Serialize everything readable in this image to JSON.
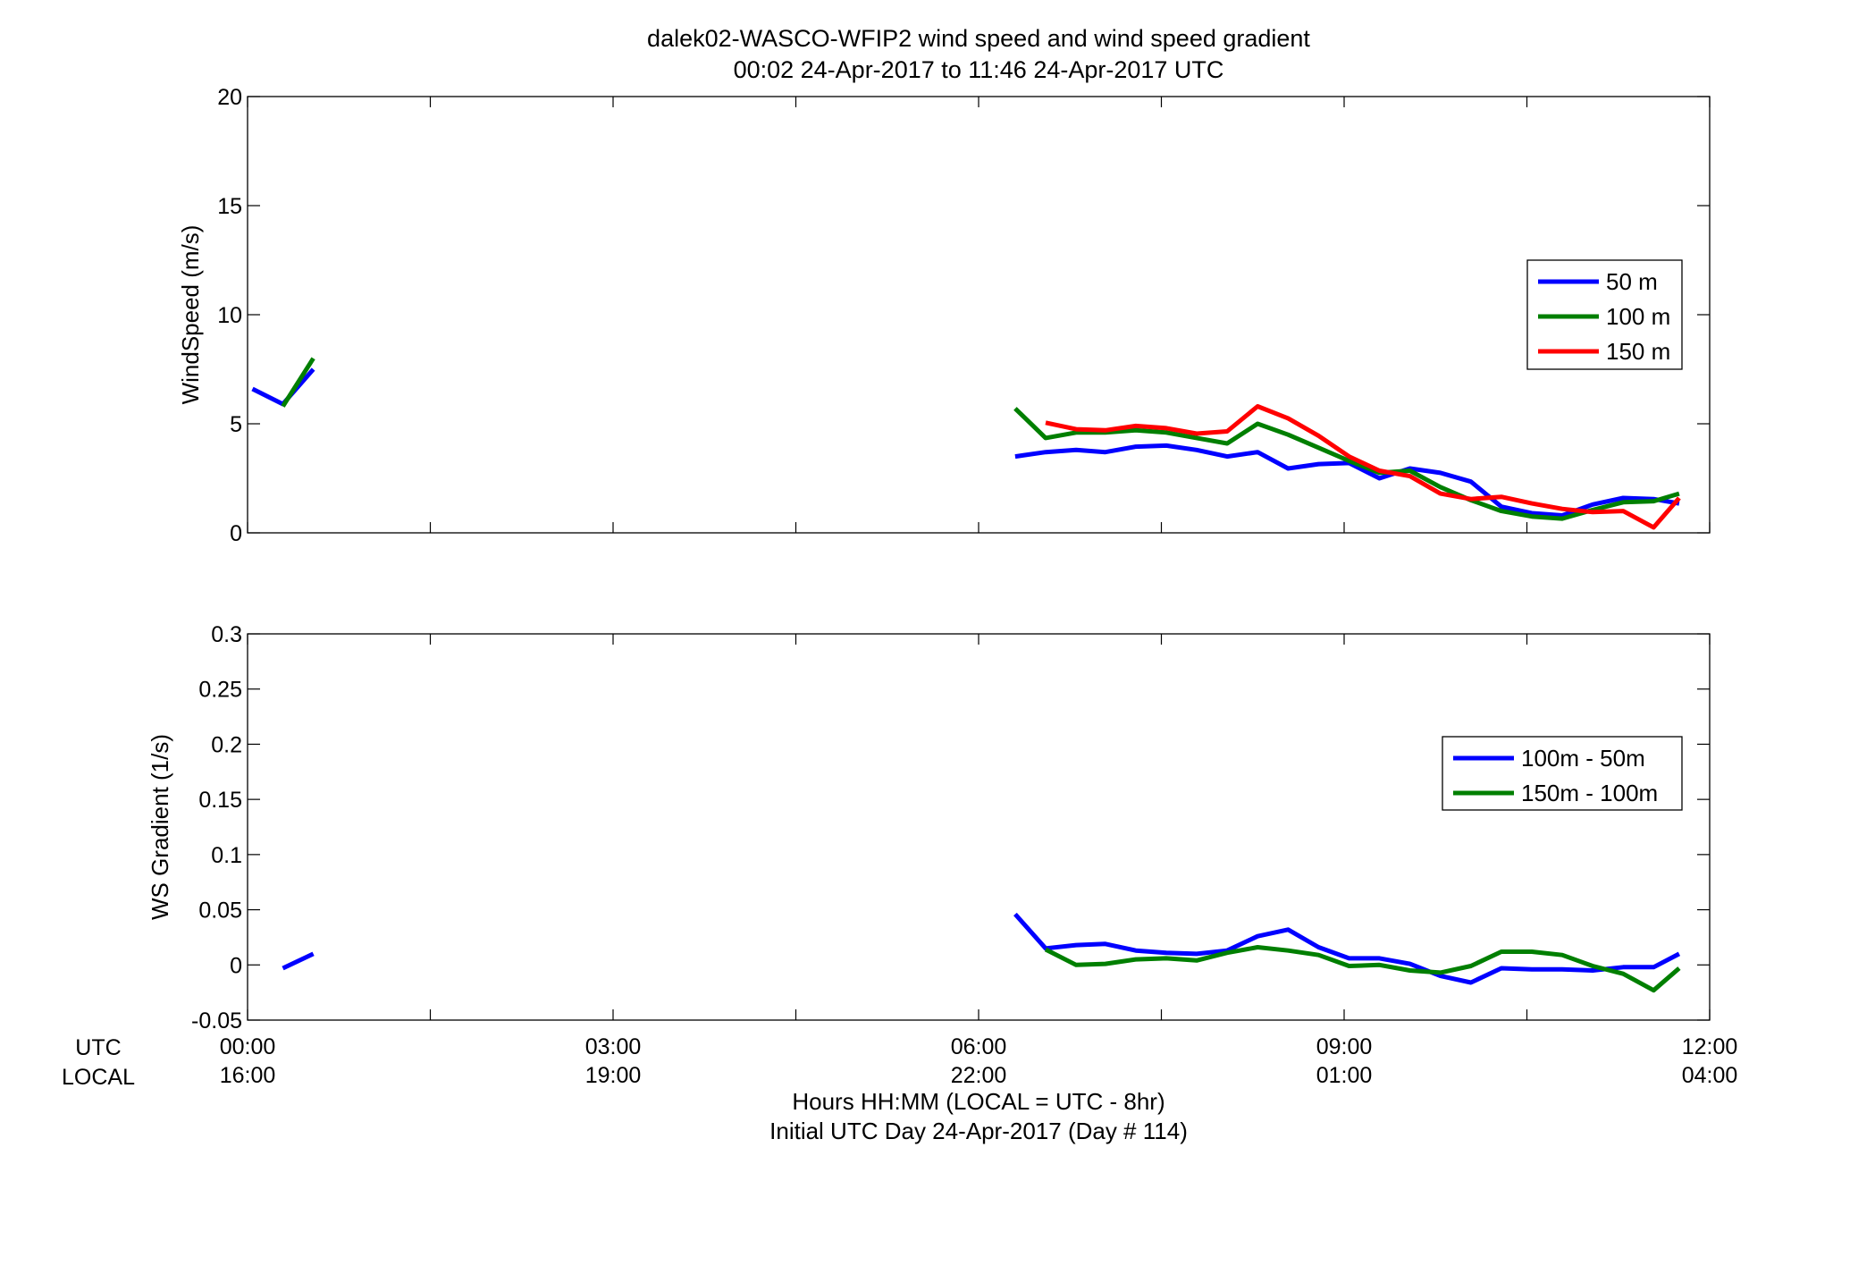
{
  "title_line1": "dalek02-WASCO-WFIP2  wind speed and wind speed gradient",
  "title_line2": "00:02 24-Apr-2017 to 11:46 24-Apr-2017  UTC",
  "row_labels": {
    "utc": "UTC",
    "local": "LOCAL"
  },
  "xlabel_line1": "Hours HH:MM  (LOCAL = UTC - 8hr)",
  "xlabel_line2": "Initial UTC Day 24-Apr-2017 (Day # 114)",
  "x_ticks": [
    {
      "hours": 0,
      "utc": "00:00",
      "local": "16:00"
    },
    {
      "hours": 3,
      "utc": "03:00",
      "local": "19:00"
    },
    {
      "hours": 6,
      "utc": "06:00",
      "local": "22:00"
    },
    {
      "hours": 9,
      "utc": "09:00",
      "local": "01:00"
    },
    {
      "hours": 12,
      "utc": "12:00",
      "local": "04:00"
    }
  ],
  "colors": {
    "blue": "#0000ff",
    "green": "#007f00",
    "red": "#ff0000"
  },
  "chart_data": [
    {
      "type": "line",
      "ylabel": "WindSpeed (m/s)",
      "xlim": [
        0,
        12
      ],
      "ylim": [
        0,
        20
      ],
      "yticks": [
        0,
        5,
        10,
        15,
        20
      ],
      "x_unit": "hours UTC",
      "grid": false,
      "legend_placement": "right",
      "series": [
        {
          "name": "50 m",
          "color": "#0000ff",
          "segments": [
            [
              [
                0.04,
                6.6
              ],
              [
                0.29,
                5.9
              ],
              [
                0.54,
                7.5
              ]
            ],
            [
              [
                6.3,
                3.5
              ],
              [
                6.55,
                3.7
              ],
              [
                6.8,
                3.8
              ],
              [
                7.04,
                3.7
              ],
              [
                7.29,
                3.95
              ],
              [
                7.54,
                4.0
              ],
              [
                7.79,
                3.8
              ],
              [
                8.04,
                3.5
              ],
              [
                8.29,
                3.7
              ],
              [
                8.54,
                2.95
              ],
              [
                8.79,
                3.15
              ],
              [
                9.04,
                3.2
              ],
              [
                9.29,
                2.5
              ],
              [
                9.54,
                2.95
              ],
              [
                9.79,
                2.75
              ],
              [
                10.04,
                2.35
              ],
              [
                10.29,
                1.2
              ],
              [
                10.54,
                0.9
              ],
              [
                10.79,
                0.8
              ],
              [
                11.04,
                1.3
              ],
              [
                11.29,
                1.6
              ],
              [
                11.54,
                1.55
              ],
              [
                11.75,
                1.35
              ]
            ]
          ]
        },
        {
          "name": "100 m",
          "color": "#007f00",
          "segments": [
            [
              [
                0.29,
                5.8
              ],
              [
                0.54,
                8.0
              ]
            ],
            [
              [
                6.3,
                5.7
              ],
              [
                6.55,
                4.35
              ],
              [
                6.8,
                4.6
              ],
              [
                7.04,
                4.6
              ],
              [
                7.29,
                4.7
              ],
              [
                7.54,
                4.6
              ],
              [
                7.79,
                4.35
              ],
              [
                8.04,
                4.1
              ],
              [
                8.29,
                5.0
              ],
              [
                8.54,
                4.5
              ],
              [
                8.79,
                3.9
              ],
              [
                9.04,
                3.3
              ],
              [
                9.29,
                2.75
              ],
              [
                9.54,
                2.85
              ],
              [
                9.79,
                2.1
              ],
              [
                10.04,
                1.5
              ],
              [
                10.29,
                1.0
              ],
              [
                10.54,
                0.75
              ],
              [
                10.79,
                0.65
              ],
              [
                11.04,
                1.05
              ],
              [
                11.29,
                1.4
              ],
              [
                11.54,
                1.45
              ],
              [
                11.75,
                1.8
              ]
            ]
          ]
        },
        {
          "name": "150 m",
          "color": "#ff0000",
          "segments": [
            [
              [
                6.55,
                5.05
              ],
              [
                6.8,
                4.75
              ],
              [
                7.04,
                4.7
              ],
              [
                7.29,
                4.9
              ],
              [
                7.54,
                4.8
              ],
              [
                7.79,
                4.55
              ],
              [
                8.04,
                4.65
              ],
              [
                8.29,
                5.8
              ],
              [
                8.54,
                5.25
              ],
              [
                8.79,
                4.45
              ],
              [
                9.04,
                3.5
              ],
              [
                9.29,
                2.85
              ],
              [
                9.54,
                2.6
              ],
              [
                9.79,
                1.8
              ],
              [
                10.04,
                1.55
              ],
              [
                10.29,
                1.65
              ],
              [
                10.54,
                1.35
              ],
              [
                10.79,
                1.1
              ],
              [
                11.04,
                0.95
              ],
              [
                11.29,
                1.0
              ],
              [
                11.54,
                0.25
              ],
              [
                11.75,
                1.6
              ]
            ]
          ]
        }
      ]
    },
    {
      "type": "line",
      "ylabel": "WS Gradient (1/s)",
      "xlim": [
        0,
        12
      ],
      "ylim": [
        -0.05,
        0.3
      ],
      "yticks": [
        -0.05,
        0,
        0.05,
        0.1,
        0.15,
        0.2,
        0.25,
        0.3
      ],
      "x_unit": "hours UTC",
      "grid": false,
      "legend_placement": "right",
      "series": [
        {
          "name": "100m - 50m",
          "color": "#0000ff",
          "segments": [
            [
              [
                0.29,
                -0.003
              ],
              [
                0.54,
                0.01
              ]
            ],
            [
              [
                6.3,
                0.046
              ],
              [
                6.55,
                0.015
              ],
              [
                6.8,
                0.018
              ],
              [
                7.04,
                0.019
              ],
              [
                7.29,
                0.013
              ],
              [
                7.54,
                0.011
              ],
              [
                7.79,
                0.01
              ],
              [
                8.04,
                0.013
              ],
              [
                8.29,
                0.026
              ],
              [
                8.54,
                0.032
              ],
              [
                8.79,
                0.016
              ],
              [
                9.04,
                0.006
              ],
              [
                9.29,
                0.006
              ],
              [
                9.54,
                0.001
              ],
              [
                9.79,
                -0.01
              ],
              [
                10.04,
                -0.016
              ],
              [
                10.29,
                -0.003
              ],
              [
                10.54,
                -0.004
              ],
              [
                10.79,
                -0.004
              ],
              [
                11.04,
                -0.005
              ],
              [
                11.29,
                -0.002
              ],
              [
                11.54,
                -0.002
              ],
              [
                11.75,
                0.01
              ]
            ]
          ]
        },
        {
          "name": "150m - 100m",
          "color": "#007f00",
          "segments": [
            [
              [
                6.55,
                0.014
              ],
              [
                6.8,
                0.0
              ],
              [
                7.04,
                0.001
              ],
              [
                7.29,
                0.005
              ],
              [
                7.54,
                0.006
              ],
              [
                7.79,
                0.004
              ],
              [
                8.04,
                0.011
              ],
              [
                8.29,
                0.016
              ],
              [
                8.54,
                0.013
              ],
              [
                8.79,
                0.009
              ],
              [
                9.04,
                -0.001
              ],
              [
                9.29,
                0.0
              ],
              [
                9.54,
                -0.005
              ],
              [
                9.79,
                -0.007
              ],
              [
                10.04,
                -0.001
              ],
              [
                10.29,
                0.012
              ],
              [
                10.54,
                0.012
              ],
              [
                10.79,
                0.009
              ],
              [
                11.04,
                -0.001
              ],
              [
                11.29,
                -0.008
              ],
              [
                11.54,
                -0.023
              ],
              [
                11.75,
                -0.003
              ]
            ]
          ]
        }
      ]
    }
  ]
}
